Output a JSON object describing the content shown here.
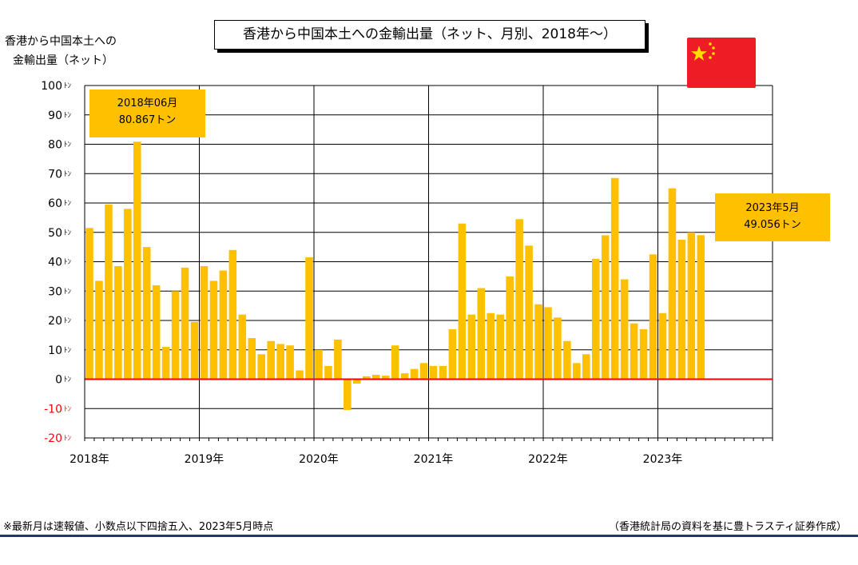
{
  "page": {
    "title": "香港から中国本土への金輸出量（ネット、月別、2018年～）",
    "ylabel_line1": "香港から中国本土への",
    "ylabel_line2": "金輸出量（ネット）",
    "footnote": "※最新月は速報値、小数点以下四捨五入、2023年5月時点",
    "source": "（香港統計局の資料を基に豊トラスティ証券作成）"
  },
  "callouts": [
    {
      "line1": "2018年06月",
      "line2": "80.867トン"
    },
    {
      "line1": "2023年5月",
      "line2": "49.056トン"
    }
  ],
  "colors": {
    "bar": "#ffc000",
    "zero_line": "#ff0000",
    "negative_tick": "#ff0000",
    "flag_red": "#ee1c25",
    "flag_star": "#ffde00"
  },
  "icons": {
    "flag": "china-flag-icon"
  },
  "chart_data": {
    "type": "bar",
    "title": "香港から中国本土への金輸出量（ネット、月別、2018年～）",
    "ylabel": "香港から中国本土への金輸出量（ネット）",
    "unit": "ﾄﾝ",
    "ylim": [
      -20,
      100
    ],
    "yticks": [
      100,
      90,
      80,
      70,
      60,
      50,
      40,
      30,
      20,
      10,
      0,
      -10,
      -20
    ],
    "ytick_labels": [
      "100ﾄﾝ",
      "90ﾄﾝ",
      "80ﾄﾝ",
      "70ﾄﾝ",
      "60ﾄﾝ",
      "50ﾄﾝ",
      "40ﾄﾝ",
      "30ﾄﾝ",
      "20ﾄﾝ",
      "10ﾄﾝ",
      "0ﾄﾝ",
      "-10ﾄﾝ",
      "-20ﾄﾝ"
    ],
    "xtick_labels": [
      "2018年",
      "2019年",
      "2020年",
      "2021年",
      "2022年",
      "2023年"
    ],
    "grid": true,
    "start_month": "2018-01",
    "values": [
      51.5,
      33.5,
      59.5,
      38.5,
      58,
      80.867,
      45,
      32,
      11,
      30,
      38,
      19.5,
      38.5,
      33.5,
      37,
      44,
      22,
      14,
      8.5,
      13,
      12,
      11.5,
      3,
      41.5,
      10,
      4.5,
      13.5,
      -10.5,
      -1.5,
      1,
      1.5,
      1.2,
      11.5,
      2,
      3.5,
      5.5,
      4.5,
      4.5,
      17,
      53,
      22,
      31,
      22.5,
      22,
      35,
      54.5,
      45.5,
      25.5,
      24.5,
      21,
      13,
      5.5,
      8.5,
      41,
      49,
      68.5,
      34,
      19,
      17,
      42.5,
      22.5,
      65,
      47.5,
      50,
      49.056
    ]
  }
}
